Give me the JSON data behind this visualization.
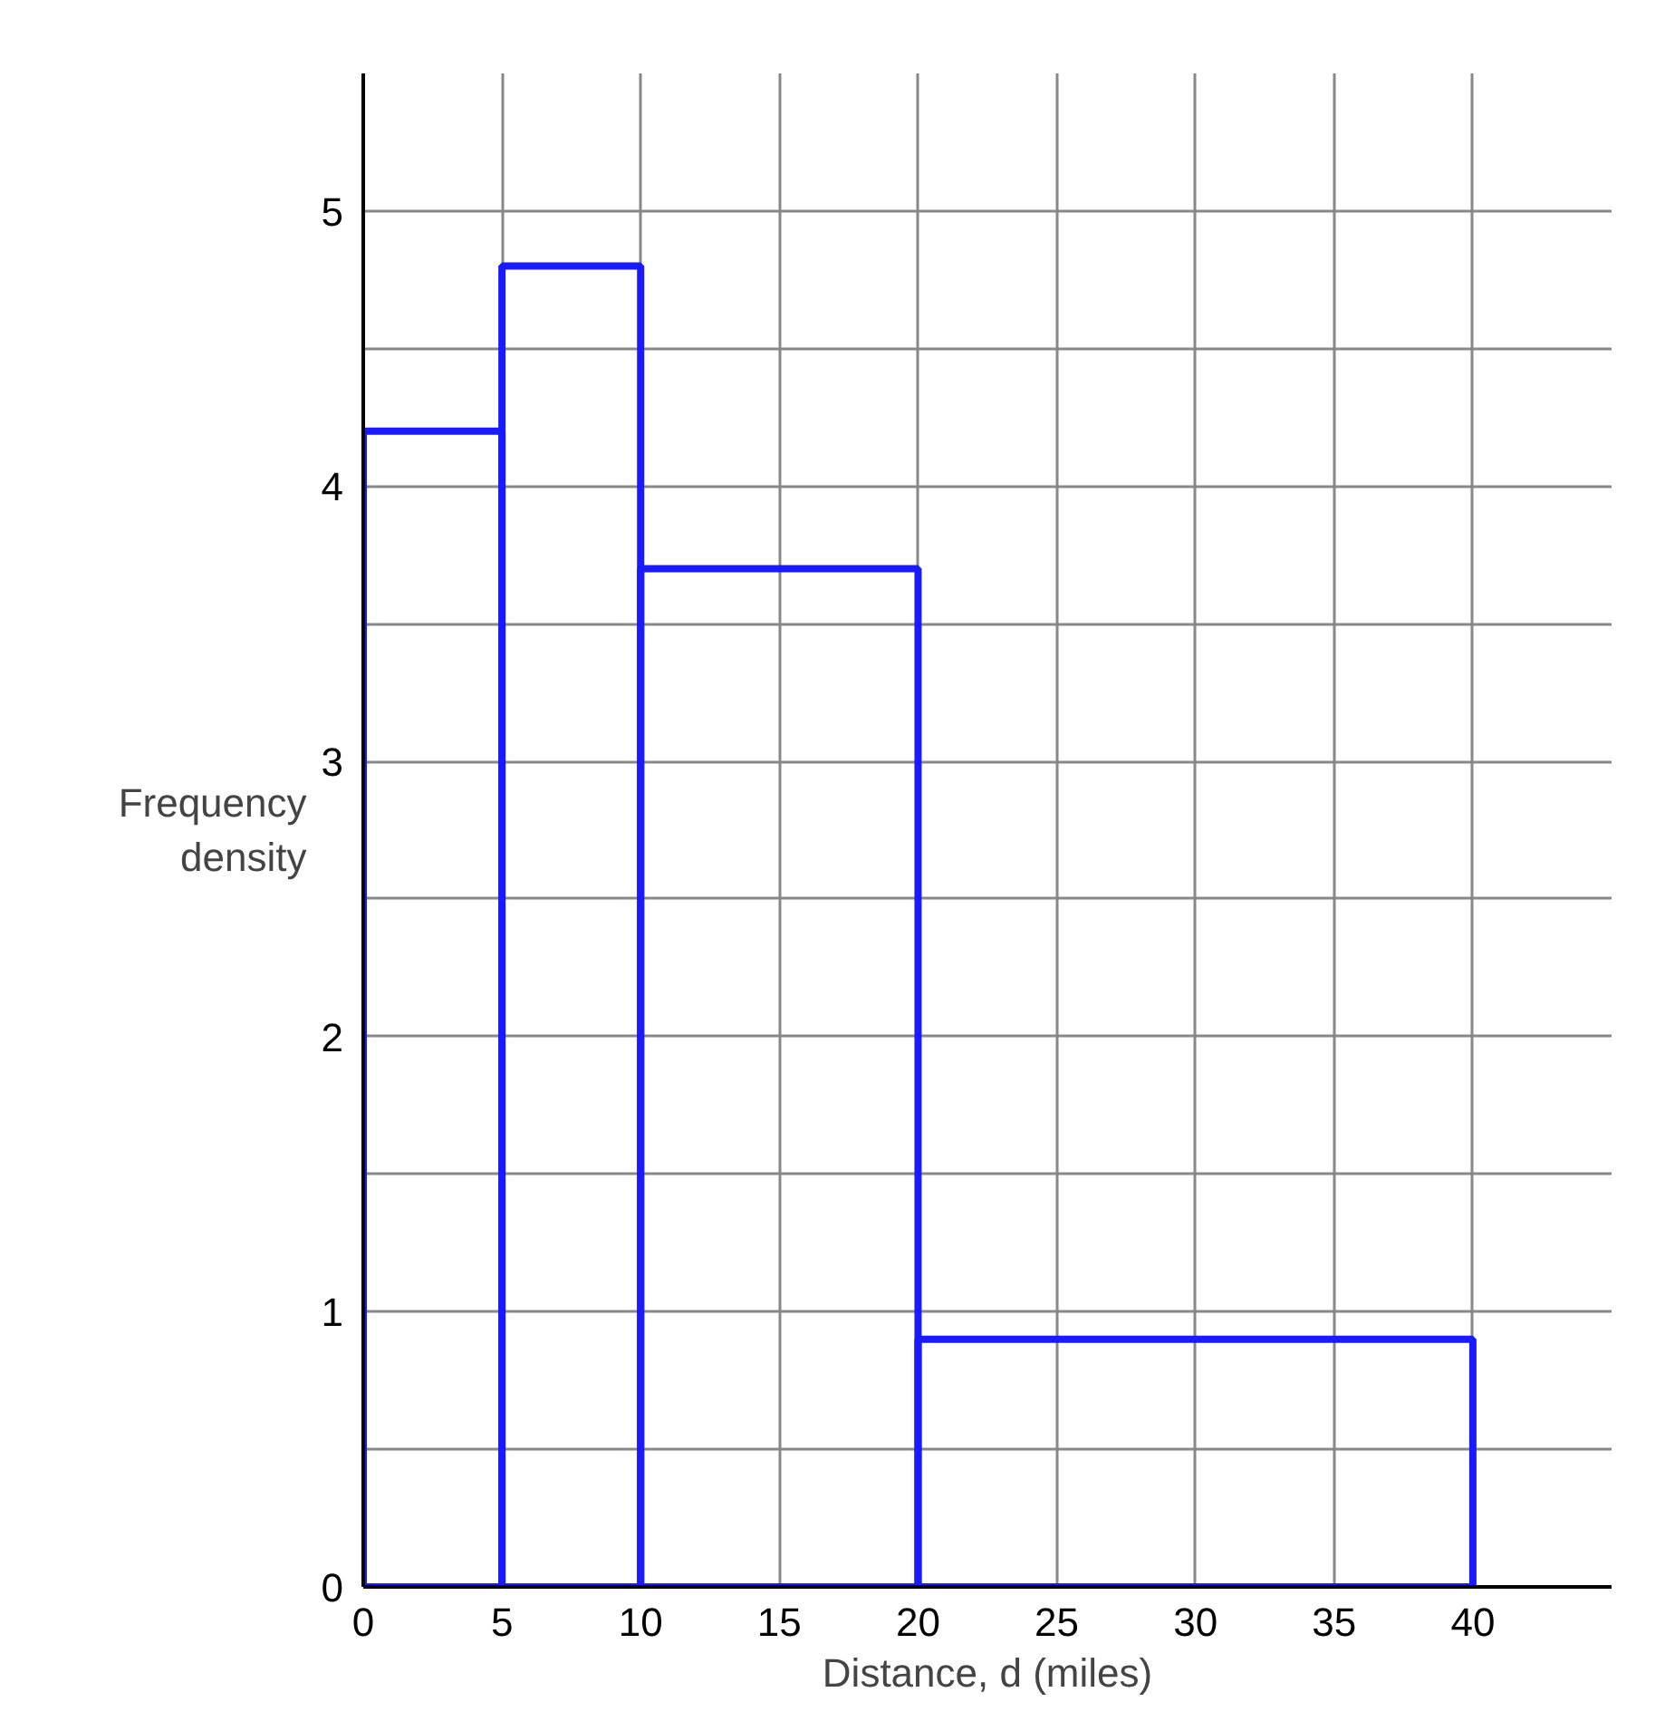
{
  "chart_data": {
    "type": "histogram",
    "xlabel": "Distance, d (miles)",
    "ylabel": "Frequency density",
    "bins": [
      0,
      5,
      10,
      20,
      40
    ],
    "values": [
      4.2,
      4.8,
      3.7,
      0.9
    ],
    "color": "#1a1aff",
    "xlim": [
      0,
      45
    ],
    "ylim": [
      0,
      5.5
    ],
    "xticks": [
      0,
      5,
      10,
      15,
      20,
      25,
      30,
      35,
      40
    ],
    "yticks": [
      0,
      1,
      2,
      3,
      4,
      5
    ],
    "grid": true
  }
}
